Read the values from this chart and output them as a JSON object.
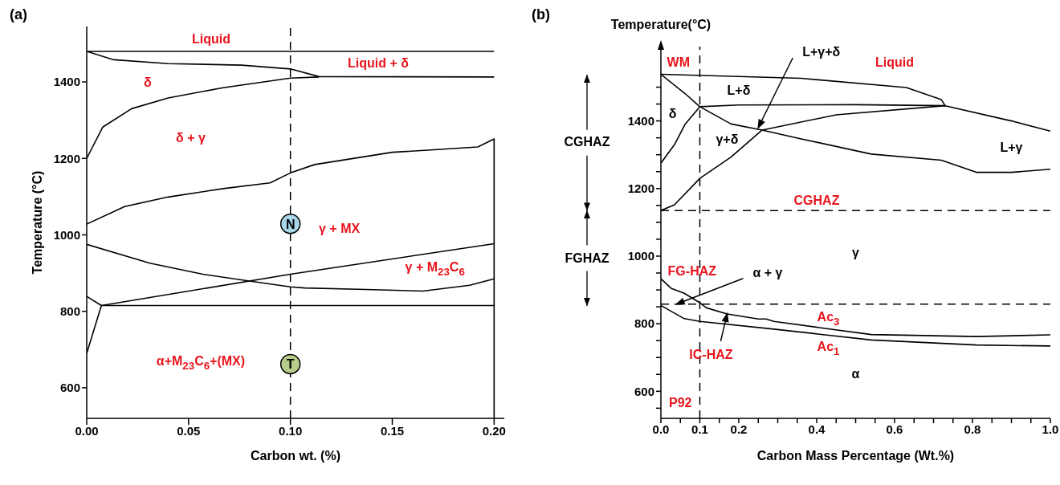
{
  "chart_data": [
    {
      "type": "line",
      "title": "(a)",
      "xlabel": "Carbon wt. (%)",
      "ylabel": "Temperature (°C)",
      "xlim": [
        0,
        0.205
      ],
      "ylim": [
        520,
        1545
      ],
      "xticks": [
        {
          "value": 0,
          "label": "0.00"
        },
        {
          "value": 0.05,
          "label": "0.05"
        },
        {
          "value": 0.1,
          "label": "0.10"
        },
        {
          "value": 0.15,
          "label": "0.15"
        },
        {
          "value": 0.2,
          "label": "0.20"
        }
      ],
      "yticks": [
        600,
        800,
        1000,
        1200,
        1400
      ],
      "line_style": "solid",
      "series": [
        {
          "color": "#000000",
          "x": [
            0.2,
            0,
            0.0133,
            0.04,
            0.076,
            0.1,
            0.114,
            0.2
          ],
          "values": [
            1480,
            1480,
            1458,
            1448,
            1444,
            1434,
            1414,
            1413
          ]
        },
        {
          "color": "#000000",
          "x": [
            0,
            0.0079,
            0.022,
            0.04,
            0.067,
            0.1,
            0.114
          ],
          "values": [
            1200,
            1282,
            1330,
            1358,
            1385,
            1410,
            1413
          ]
        },
        {
          "color": "#000000",
          "x": [
            0,
            0.0186,
            0.04,
            0.067,
            0.09,
            0.1,
            0.112,
            0.15,
            0.172,
            0.192,
            0.2,
            0.2
          ],
          "values": [
            1028,
            1074,
            1099,
            1121,
            1136,
            1162,
            1184,
            1216,
            1223,
            1230,
            1251,
            520
          ]
        },
        {
          "color": "#000000",
          "x": [
            0,
            0.031,
            0.057,
            0.084,
            0.1,
            0.107,
            0.137,
            0.165,
            0.188,
            0.2
          ],
          "values": [
            975,
            926,
            897,
            876,
            864,
            861,
            857,
            853,
            868,
            885
          ]
        },
        {
          "color": "#000000",
          "x": [
            0,
            0.0072,
            0.1,
            0.2
          ],
          "values": [
            839,
            815,
            897,
            977
          ]
        },
        {
          "color": "#000000",
          "x": [
            0,
            0.0072,
            0.2
          ],
          "values": [
            690,
            815,
            815
          ]
        },
        {
          "type": "scatter",
          "name": "N",
          "color": "#a8d5e8",
          "marker": "circle",
          "x": [
            0.1
          ],
          "values": [
            1029
          ]
        },
        {
          "type": "scatter",
          "name": "T",
          "color": "#b8cc8c",
          "marker": "circle",
          "x": [
            0.1
          ],
          "values": [
            662
          ]
        }
      ],
      "ref_lines": [
        {
          "axis": "x",
          "value": 0.1,
          "color": "#000000",
          "line_style": "dashed"
        }
      ],
      "annotations": [
        "Liquid",
        "Liquid + δ",
        "δ",
        "δ + γ",
        "γ + MX",
        "γ + M$_{23}$C$_{6}$",
        "α+M$_{23}$C$_{6}$+(MX)"
      ]
    },
    {
      "type": "line",
      "title": "(b)",
      "xlabel": "Carbon Mass Percentage (Wt.%)",
      "ylabel": "Temperature(°C)",
      "xlim": [
        0,
        1.0
      ],
      "ylim": [
        520,
        1620
      ],
      "xticks": [
        {
          "value": 0,
          "label": "0.0"
        },
        {
          "value": 0.05,
          "label": null
        },
        {
          "value": 0.1,
          "label": "0.1"
        },
        {
          "value": 0.15,
          "label": null
        },
        {
          "value": 0.2,
          "label": "0.2"
        },
        {
          "value": 0.25,
          "label": null
        },
        {
          "value": 0.3,
          "label": null
        },
        {
          "value": 0.35,
          "label": null
        },
        {
          "value": 0.4,
          "label": "0.4"
        },
        {
          "value": 0.45,
          "label": null
        },
        {
          "value": 0.5,
          "label": null
        },
        {
          "value": 0.55,
          "label": null
        },
        {
          "value": 0.6,
          "label": "0.6"
        },
        {
          "value": 0.65,
          "label": null
        },
        {
          "value": 0.7,
          "label": null
        },
        {
          "value": 0.75,
          "label": null
        },
        {
          "value": 0.8,
          "label": "0.8"
        },
        {
          "value": 0.85,
          "label": null
        },
        {
          "value": 0.9,
          "label": null
        },
        {
          "value": 0.95,
          "label": null
        },
        {
          "value": 1.0,
          "label": "1.0"
        }
      ],
      "yticks": [
        {
          "value": 550,
          "label": null
        },
        600,
        {
          "value": 650,
          "label": null
        },
        {
          "value": 700,
          "label": null
        },
        {
          "value": 750,
          "label": null
        },
        800,
        {
          "value": 850,
          "label": null
        },
        {
          "value": 900,
          "label": null
        },
        {
          "value": 950,
          "label": null
        },
        1000,
        {
          "value": 1050,
          "label": null
        },
        {
          "value": 1100,
          "label": null
        },
        {
          "value": 1150,
          "label": null
        },
        1200,
        {
          "value": 1250,
          "label": null
        },
        {
          "value": 1300,
          "label": null
        },
        {
          "value": 1350,
          "label": null
        },
        1400,
        {
          "value": 1450,
          "label": null
        },
        {
          "value": 1500,
          "label": null
        }
      ],
      "line_style": "solid",
      "series": [
        {
          "color": "#000000",
          "x": [
            0,
            0.36,
            0.63,
            0.72,
            0.73
          ],
          "values": [
            1538,
            1526,
            1499,
            1463,
            1445
          ]
        },
        {
          "color": "#000000",
          "x": [
            0,
            0.062,
            0.1,
            0.2,
            0.5,
            0.73
          ],
          "values": [
            1538,
            1481,
            1442,
            1447,
            1448,
            1445
          ]
        },
        {
          "color": "#000000",
          "x": [
            0,
            0.035,
            0.062,
            0.1,
            0.18,
            0.26,
            0.36,
            0.54,
            0.72,
            0.81,
            0.9,
            1.0
          ],
          "values": [
            1275,
            1330,
            1390,
            1442,
            1391,
            1373,
            1347,
            1302,
            1284,
            1248,
            1248,
            1257
          ]
        },
        {
          "color": "#000000",
          "x": [
            0,
            0.035,
            0.1,
            0.18,
            0.26,
            0.45,
            0.73,
            0.9,
            1.0
          ],
          "values": [
            1135,
            1152,
            1230,
            1293,
            1373,
            1418,
            1445,
            1400,
            1370
          ]
        },
        {
          "color": "#000000",
          "x": [
            0,
            0.026,
            0.06,
            0.1,
            0.117,
            0.17,
            0.25,
            0.27,
            0.29,
            0.41,
            0.54,
            0.81,
            1.0
          ],
          "values": [
            933,
            905,
            890,
            862,
            847,
            829,
            814,
            814,
            807,
            788,
            768,
            762,
            767
          ]
        },
        {
          "color": "#000000",
          "x": [
            0,
            0.06,
            0.1,
            0.29,
            0.54,
            0.81,
            1.0
          ],
          "values": [
            854,
            815,
            807,
            784,
            752,
            737,
            734
          ]
        }
      ],
      "ref_lines": [
        {
          "axis": "x",
          "value": 0.1,
          "color": "#000000",
          "line_style": "dashed"
        },
        {
          "axis": "y",
          "value": 1135,
          "color": "#000000",
          "line_style": "dashed"
        },
        {
          "axis": "y",
          "value": 858,
          "color": "#000000",
          "line_style": "dashed"
        }
      ],
      "annotations": [
        "WM",
        "Liquid",
        "L+δ",
        "δ",
        "γ+δ",
        {
          "text": "L+γ+δ",
          "x": 0.25,
          "y": 1380
        },
        "L+γ",
        "CGHAZ",
        "γ",
        "FG-HAZ",
        {
          "text": "α + γ",
          "x": 0.04,
          "y": 858
        },
        {
          "text": "IC-HAZ",
          "x": 0.17,
          "y": 829
        },
        "Ac$_{3}$",
        "Ac$_{1}$",
        "α",
        "P92",
        "CGHAZ",
        "FGHAZ"
      ]
    }
  ]
}
